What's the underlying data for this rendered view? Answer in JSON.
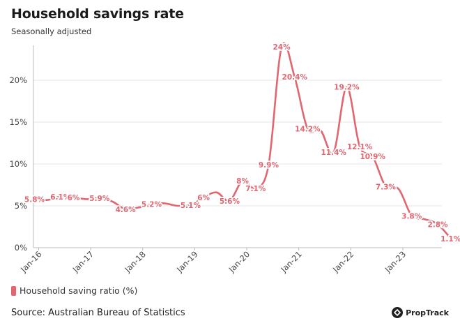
{
  "title": "Household savings rate",
  "subtitle": "Seasonally adjusted",
  "source": "Source: Australian Bureau of Statistics",
  "brand": "PropTrack",
  "colors": {
    "series": "#e06670",
    "grid": "#e6e6e6",
    "axis": "#bbbbbb",
    "text": "#444444"
  },
  "chart_data": {
    "type": "line",
    "title": "Household savings rate",
    "subtitle": "Seasonally adjusted",
    "xlabel": "",
    "ylabel": "",
    "ylim": [
      0,
      25
    ],
    "xlim": [
      2015.9,
      2023.75
    ],
    "grid": true,
    "legend_position": "bottom-left",
    "y_ticks": [
      {
        "value": 0,
        "label": "0%"
      },
      {
        "value": 5,
        "label": "5%"
      },
      {
        "value": 10,
        "label": "10%"
      },
      {
        "value": 15,
        "label": "15%"
      },
      {
        "value": 20,
        "label": "20%"
      }
    ],
    "x_ticks": [
      {
        "value": 2016.0,
        "label": "Jan-16"
      },
      {
        "value": 2017.0,
        "label": "Jan-17"
      },
      {
        "value": 2018.0,
        "label": "Jan-18"
      },
      {
        "value": 2019.0,
        "label": "Jan-19"
      },
      {
        "value": 2020.0,
        "label": "Jan-20"
      },
      {
        "value": 2021.0,
        "label": "Jan-21"
      },
      {
        "value": 2022.0,
        "label": "Jan-22"
      },
      {
        "value": 2023.0,
        "label": "Jan-23"
      }
    ],
    "series": [
      {
        "name": "Household saving ratio (%)",
        "color": "#e06670",
        "points": [
          {
            "x": 2015.92,
            "y": 5.8,
            "label": "5.8%"
          },
          {
            "x": 2016.17,
            "y": 5.7
          },
          {
            "x": 2016.42,
            "y": 6.1,
            "label": "6.1%"
          },
          {
            "x": 2016.67,
            "y": 6.0,
            "label": "6%"
          },
          {
            "x": 2016.92,
            "y": 5.8
          },
          {
            "x": 2017.17,
            "y": 5.9,
            "label": "5.9%"
          },
          {
            "x": 2017.42,
            "y": 5.5
          },
          {
            "x": 2017.67,
            "y": 4.6,
            "label": "4.6%"
          },
          {
            "x": 2017.92,
            "y": 4.8
          },
          {
            "x": 2018.17,
            "y": 5.2,
            "label": "5.2%"
          },
          {
            "x": 2018.42,
            "y": 5.3
          },
          {
            "x": 2018.67,
            "y": 5.0
          },
          {
            "x": 2018.92,
            "y": 5.1,
            "label": "5.1%"
          },
          {
            "x": 2019.17,
            "y": 6.0,
            "label": "6%"
          },
          {
            "x": 2019.42,
            "y": 6.6
          },
          {
            "x": 2019.67,
            "y": 5.6,
            "label": "5.6%"
          },
          {
            "x": 2019.92,
            "y": 8.0,
            "label": "8%"
          },
          {
            "x": 2020.17,
            "y": 7.1,
            "label": "7.1%"
          },
          {
            "x": 2020.42,
            "y": 9.9,
            "label": "9.9%"
          },
          {
            "x": 2020.67,
            "y": 24.0,
            "label": "24%"
          },
          {
            "x": 2020.92,
            "y": 20.4,
            "label": "20.4%"
          },
          {
            "x": 2021.17,
            "y": 14.2,
            "label": "14.2%"
          },
          {
            "x": 2021.42,
            "y": 14.0
          },
          {
            "x": 2021.67,
            "y": 11.4,
            "label": "11.4%"
          },
          {
            "x": 2021.92,
            "y": 19.2,
            "label": "19.2%"
          },
          {
            "x": 2022.17,
            "y": 12.1,
            "label": "12.1%"
          },
          {
            "x": 2022.42,
            "y": 10.9,
            "label": "10.9%"
          },
          {
            "x": 2022.67,
            "y": 7.3,
            "label": "7.3%"
          },
          {
            "x": 2022.92,
            "y": 7.0
          },
          {
            "x": 2023.17,
            "y": 3.8,
            "label": "3.8%"
          },
          {
            "x": 2023.42,
            "y": 3.4
          },
          {
            "x": 2023.67,
            "y": 2.8,
            "label": "2.8%"
          },
          {
            "x": 2023.92,
            "y": 1.1,
            "label": "1.1%"
          }
        ]
      }
    ]
  }
}
